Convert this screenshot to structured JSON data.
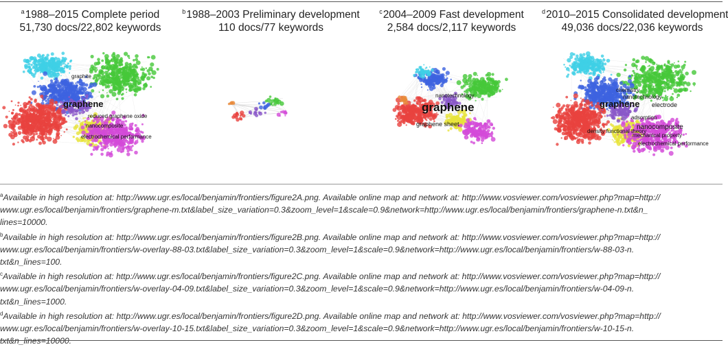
{
  "panels": [
    {
      "marker": "a",
      "title": "1988–2015 Complete period",
      "counts": "51,730 docs/22,802 keywords",
      "map_labels": [
        "graphite",
        "graphene",
        "reduced graphene oxide",
        "nanocomposite",
        "electrochemical performance"
      ]
    },
    {
      "marker": "b",
      "title": "1988–2003 Preliminary development",
      "counts": "110 docs/77 keywords",
      "map_labels": []
    },
    {
      "marker": "c",
      "title": "2004–2009 Fast development",
      "counts": "2,584 docs/2,117 keywords",
      "map_labels": [
        "nanotechnology",
        "graphene",
        "graphene sheet"
      ]
    },
    {
      "marker": "d",
      "title": "2010–2015 Consolidated development",
      "counts": "49,036 docs/22,036 keywords",
      "map_labels": [
        "chemistry",
        "graphene",
        "electrode",
        "nanotechnology",
        "adsorption",
        "nanocomposite",
        "mechanical property",
        "electrochemical performance",
        "density functional theory"
      ]
    }
  ],
  "notes": [
    {
      "marker": "a",
      "lines": [
        "Available in high resolution at: http://www.ugr.es/local/benjamin/frontiers/figure2A.png. Available online map and network at: http://www.vosviewer.com/vosviewer.php?map=http://",
        "www.ugr.es/local/benjamin/frontiers/graphene-m.txt&label_size_variation=0.3&zoom_level=1&scale=0.9&network=http://www.ugr.es/local/benjamin/frontiers/graphene-n.txt&n_",
        "lines=10000."
      ]
    },
    {
      "marker": "b",
      "lines": [
        "Available in high resolution at: http://www.ugr.es/local/benjamin/frontiers/figure2B.png. Available online map and network at: http://www.vosviewer.com/vosviewer.php?map=http://",
        "www.ugr.es/local/benjamin/frontiers/w-overlay-88-03.txt&label_size_variation=0.3&zoom_level=1&scale=0.9&network=http://www.ugr.es/local/benjamin/frontiers/w-88-03-n.",
        "txt&n_lines=100."
      ]
    },
    {
      "marker": "c",
      "lines": [
        "Available in high resolution at: http://www.ugr.es/local/benjamin/frontiers/figure2C.png. Available online map and network at: http://www.vosviewer.com/vosviewer.php?map=http://",
        "www.ugr.es/local/benjamin/frontiers/w-overlay-04-09.txt&label_size_variation=0.3&zoom_level=1&scale=0.9&network=http://www.ugr.es/local/benjamin/frontiers/w-04-09-n.",
        "txt&n_lines=1000."
      ]
    },
    {
      "marker": "d",
      "lines": [
        "Available in high resolution at: http://www.ugr.es/local/benjamin/frontiers/figure2D.png. Available online map and network at: http://www.vosviewer.com/vosviewer.php?map=http://",
        "www.ugr.es/local/benjamin/frontiers/w-overlay-10-15.txt&label_size_variation=0.3&zoom_level=1&scale=0.9&network=http://www.ugr.es/local/benjamin/frontiers/w-10-15-n.",
        "txt&n_lines=10000."
      ]
    }
  ],
  "colors": {
    "red": "#e8423f",
    "blue": "#3d63e0",
    "cyan": "#3fd0e6",
    "green": "#46c83a",
    "yellow": "#e7e33a",
    "magenta": "#d34ad8",
    "purple": "#8a57c8",
    "orange": "#e8893a"
  }
}
